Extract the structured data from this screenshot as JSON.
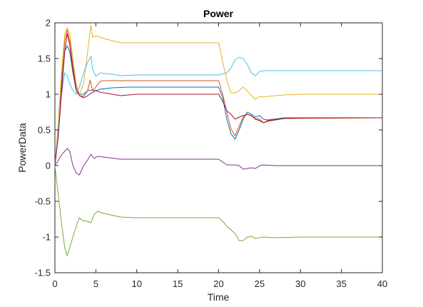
{
  "chart_data": {
    "type": "line",
    "title": "Power",
    "xlabel": "Time",
    "ylabel": "PowerData",
    "xlim": [
      0,
      40
    ],
    "ylim": [
      -1.5,
      2
    ],
    "xticks": [
      "0",
      "5",
      "10",
      "15",
      "20",
      "25",
      "30",
      "35",
      "40"
    ],
    "yticks": [
      "-1.5",
      "-1",
      "-0.5",
      "0",
      "0.5",
      "1",
      "1.5",
      "2"
    ],
    "grid": false,
    "legend": "none",
    "series": [
      {
        "color": "#0072BD",
        "points": [
          [
            0,
            0
          ],
          [
            0.4,
            0.5
          ],
          [
            0.8,
            1.1
          ],
          [
            1.2,
            1.6
          ],
          [
            1.5,
            1.68
          ],
          [
            1.8,
            1.6
          ],
          [
            2.2,
            1.3
          ],
          [
            2.6,
            1.05
          ],
          [
            3.0,
            1.0
          ],
          [
            3.5,
            1.0
          ],
          [
            4.0,
            1.05
          ],
          [
            4.5,
            1.06
          ],
          [
            5.0,
            1.05
          ],
          [
            5.5,
            1.07
          ],
          [
            7,
            1.09
          ],
          [
            9,
            1.1
          ],
          [
            15,
            1.1
          ],
          [
            20,
            1.1
          ],
          [
            20.5,
            0.95
          ],
          [
            21,
            0.65
          ],
          [
            21.5,
            0.45
          ],
          [
            22,
            0.37
          ],
          [
            22.5,
            0.5
          ],
          [
            23,
            0.65
          ],
          [
            23.5,
            0.75
          ],
          [
            24,
            0.72
          ],
          [
            24.5,
            0.68
          ],
          [
            25,
            0.7
          ],
          [
            25.5,
            0.65
          ],
          [
            26,
            0.64
          ],
          [
            28,
            0.67
          ],
          [
            30,
            0.67
          ],
          [
            40,
            0.67
          ]
        ]
      },
      {
        "color": "#D95319",
        "points": [
          [
            0,
            0
          ],
          [
            0.4,
            0.5
          ],
          [
            0.8,
            1.2
          ],
          [
            1.2,
            1.75
          ],
          [
            1.5,
            1.9
          ],
          [
            1.8,
            1.75
          ],
          [
            2.2,
            1.4
          ],
          [
            2.6,
            1.1
          ],
          [
            3.0,
            0.98
          ],
          [
            3.5,
            0.97
          ],
          [
            4.0,
            1.05
          ],
          [
            4.3,
            1.2
          ],
          [
            4.6,
            1.05
          ],
          [
            5.0,
            1.1
          ],
          [
            5.5,
            1.18
          ],
          [
            6,
            1.19
          ],
          [
            8,
            1.19
          ],
          [
            20,
            1.19
          ],
          [
            20.5,
            1.0
          ],
          [
            21,
            0.75
          ],
          [
            21.5,
            0.52
          ],
          [
            22,
            0.42
          ],
          [
            22.5,
            0.55
          ],
          [
            23,
            0.68
          ],
          [
            23.5,
            0.72
          ],
          [
            24,
            0.7
          ],
          [
            24.5,
            0.66
          ],
          [
            25,
            0.65
          ],
          [
            25.5,
            0.6
          ],
          [
            26,
            0.62
          ],
          [
            28,
            0.66
          ],
          [
            40,
            0.67
          ]
        ]
      },
      {
        "color": "#EDB120",
        "points": [
          [
            0,
            0
          ],
          [
            0.4,
            0.6
          ],
          [
            0.8,
            1.3
          ],
          [
            1.2,
            1.85
          ],
          [
            1.5,
            1.93
          ],
          [
            1.8,
            1.85
          ],
          [
            2.2,
            1.5
          ],
          [
            2.6,
            1.15
          ],
          [
            3.0,
            1.0
          ],
          [
            3.5,
            1.15
          ],
          [
            4.0,
            1.6
          ],
          [
            4.4,
            1.97
          ],
          [
            4.6,
            1.8
          ],
          [
            5.0,
            1.82
          ],
          [
            6,
            1.78
          ],
          [
            8,
            1.72
          ],
          [
            10,
            1.72
          ],
          [
            15,
            1.72
          ],
          [
            20,
            1.72
          ],
          [
            20.5,
            1.45
          ],
          [
            21,
            1.2
          ],
          [
            21.5,
            1.02
          ],
          [
            22,
            1.02
          ],
          [
            22.5,
            1.05
          ],
          [
            23,
            1.1
          ],
          [
            23.5,
            1.05
          ],
          [
            24,
            0.98
          ],
          [
            24.5,
            0.93
          ],
          [
            25,
            0.97
          ],
          [
            25.5,
            0.96
          ],
          [
            26,
            0.97
          ],
          [
            28,
            0.99
          ],
          [
            30,
            1.0
          ],
          [
            40,
            1.0
          ]
        ]
      },
      {
        "color": "#7E2F8E",
        "points": [
          [
            0,
            0
          ],
          [
            0.3,
            0.05
          ],
          [
            0.8,
            0.15
          ],
          [
            1.5,
            0.24
          ],
          [
            1.8,
            0.2
          ],
          [
            2.2,
            0.0
          ],
          [
            2.6,
            -0.1
          ],
          [
            3.0,
            -0.13
          ],
          [
            3.5,
            0.0
          ],
          [
            4.0,
            0.08
          ],
          [
            4.4,
            0.16
          ],
          [
            4.8,
            0.1
          ],
          [
            5.2,
            0.13
          ],
          [
            6,
            0.12
          ],
          [
            8,
            0.09
          ],
          [
            10,
            0.09
          ],
          [
            15,
            0.09
          ],
          [
            20,
            0.09
          ],
          [
            20.5,
            0.05
          ],
          [
            21,
            0.01
          ],
          [
            22,
            0.01
          ],
          [
            22.5,
            0.0
          ],
          [
            23,
            -0.05
          ],
          [
            23.5,
            -0.04
          ],
          [
            24,
            -0.03
          ],
          [
            24.5,
            -0.04
          ],
          [
            25,
            0.0
          ],
          [
            25.5,
            0.01
          ],
          [
            27,
            0.0
          ],
          [
            40,
            0.0
          ]
        ]
      },
      {
        "color": "#77AC30",
        "points": [
          [
            0,
            0
          ],
          [
            0.4,
            -0.4
          ],
          [
            0.8,
            -0.8
          ],
          [
            1.2,
            -1.15
          ],
          [
            1.5,
            -1.26
          ],
          [
            1.8,
            -1.15
          ],
          [
            2.2,
            -1.0
          ],
          [
            2.6,
            -0.85
          ],
          [
            3.0,
            -0.73
          ],
          [
            3.4,
            -0.77
          ],
          [
            4.0,
            -0.78
          ],
          [
            4.4,
            -0.8
          ],
          [
            4.8,
            -0.68
          ],
          [
            5.2,
            -0.64
          ],
          [
            6,
            -0.67
          ],
          [
            8,
            -0.72
          ],
          [
            10,
            -0.73
          ],
          [
            15,
            -0.73
          ],
          [
            20,
            -0.73
          ],
          [
            20.5,
            -0.78
          ],
          [
            21,
            -0.85
          ],
          [
            22,
            -0.95
          ],
          [
            22.5,
            -1.05
          ],
          [
            23,
            -1.05
          ],
          [
            23.5,
            -1.0
          ],
          [
            24,
            -0.99
          ],
          [
            24.5,
            -1.02
          ],
          [
            25,
            -1.01
          ],
          [
            25.5,
            -1.0
          ],
          [
            27,
            -1.01
          ],
          [
            30,
            -1.0
          ],
          [
            40,
            -1.0
          ]
        ]
      },
      {
        "color": "#4DBEEE",
        "points": [
          [
            0,
            0
          ],
          [
            0.4,
            0.5
          ],
          [
            0.8,
            1.0
          ],
          [
            1.2,
            1.3
          ],
          [
            1.5,
            1.25
          ],
          [
            1.8,
            1.15
          ],
          [
            2.2,
            1.05
          ],
          [
            2.6,
            1.0
          ],
          [
            3.0,
            1.1
          ],
          [
            3.5,
            1.3
          ],
          [
            4.0,
            1.45
          ],
          [
            4.4,
            1.53
          ],
          [
            4.6,
            1.35
          ],
          [
            5.0,
            1.25
          ],
          [
            5.5,
            1.3
          ],
          [
            7,
            1.28
          ],
          [
            8,
            1.26
          ],
          [
            10,
            1.27
          ],
          [
            15,
            1.27
          ],
          [
            20,
            1.27
          ],
          [
            21,
            1.3
          ],
          [
            21.5,
            1.37
          ],
          [
            22,
            1.48
          ],
          [
            22.5,
            1.52
          ],
          [
            23,
            1.5
          ],
          [
            23.5,
            1.42
          ],
          [
            24,
            1.3
          ],
          [
            24.5,
            1.26
          ],
          [
            25,
            1.32
          ],
          [
            25.5,
            1.33
          ],
          [
            27,
            1.33
          ],
          [
            30,
            1.33
          ],
          [
            40,
            1.33
          ]
        ]
      },
      {
        "color": "#A2142F",
        "points": [
          [
            0,
            0
          ],
          [
            0.4,
            0.4
          ],
          [
            0.8,
            1.0
          ],
          [
            1.2,
            1.6
          ],
          [
            1.5,
            1.85
          ],
          [
            1.8,
            1.7
          ],
          [
            2.2,
            1.35
          ],
          [
            2.6,
            1.05
          ],
          [
            3.0,
            0.98
          ],
          [
            3.5,
            0.95
          ],
          [
            4.0,
            0.98
          ],
          [
            4.5,
            1.02
          ],
          [
            5.0,
            1.05
          ],
          [
            5.5,
            1.03
          ],
          [
            7,
            1.0
          ],
          [
            8,
            0.98
          ],
          [
            10,
            1.0
          ],
          [
            15,
            1.0
          ],
          [
            20,
            1.0
          ],
          [
            20.5,
            0.9
          ],
          [
            21,
            0.77
          ],
          [
            21.5,
            0.72
          ],
          [
            22,
            0.65
          ],
          [
            22.5,
            0.68
          ],
          [
            23,
            0.7
          ],
          [
            23.5,
            0.72
          ],
          [
            24,
            0.7
          ],
          [
            24.5,
            0.65
          ],
          [
            25,
            0.63
          ],
          [
            25.5,
            0.6
          ],
          [
            26,
            0.63
          ],
          [
            28,
            0.66
          ],
          [
            30,
            0.67
          ],
          [
            40,
            0.67
          ]
        ]
      }
    ]
  }
}
